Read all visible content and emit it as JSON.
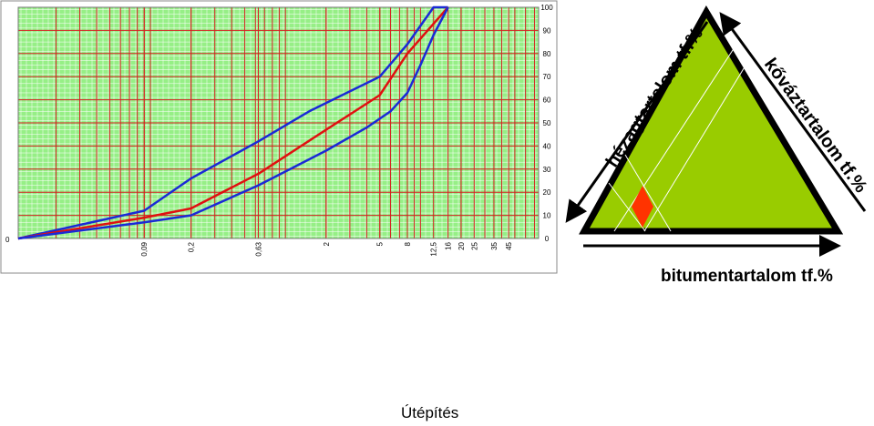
{
  "chart_data": [
    {
      "type": "line",
      "x_scale": "log",
      "x_ticks": [
        "0,09",
        "0,2",
        "0,63",
        "2",
        "5",
        "8",
        "12,5",
        "16",
        "20",
        "25",
        "35",
        "45"
      ],
      "y_ticks": [
        "0",
        "10",
        "20",
        "30",
        "40",
        "50",
        "60",
        "70",
        "80",
        "90",
        "100"
      ],
      "ylim": [
        0,
        100
      ],
      "grid": true,
      "x_origin_label": "0",
      "series": [
        {
          "role": "upper-limit",
          "color": "#1a2ad6",
          "points": [
            [
              0.09,
              12
            ],
            [
              0.2,
              26
            ],
            [
              0.63,
              42
            ],
            [
              1.5,
              55
            ],
            [
              5,
              70
            ],
            [
              8,
              84
            ],
            [
              12.5,
              100
            ],
            [
              16,
              100
            ]
          ]
        },
        {
          "role": "grading",
          "color": "#e01010",
          "points": [
            [
              0.09,
              9
            ],
            [
              0.2,
              13
            ],
            [
              0.63,
              28
            ],
            [
              2,
              47
            ],
            [
              5,
              62
            ],
            [
              8,
              80
            ],
            [
              16,
              100
            ]
          ]
        },
        {
          "role": "lower-limit",
          "color": "#1a2ad6",
          "points": [
            [
              0.09,
              7
            ],
            [
              0.2,
              10
            ],
            [
              0.63,
              23
            ],
            [
              2,
              38
            ],
            [
              4,
              48
            ],
            [
              6,
              55
            ],
            [
              8,
              63
            ],
            [
              10,
              75
            ],
            [
              12.5,
              88
            ],
            [
              16,
              100
            ]
          ]
        }
      ],
      "colors": {
        "background": "#96ef86",
        "major_grid": "#d62020",
        "minor_grid": "#ffffff",
        "frame": "#888888"
      }
    },
    {
      "type": "ternary",
      "axis_labels": {
        "left": "hézagtartalom tf.%",
        "right": "kőváztartalom tf.%",
        "bottom": "bitumentartalom tf.%"
      },
      "colors": {
        "fill": "#99cc00",
        "border": "#000000",
        "marker": "#ff3300",
        "grid": "#ffffff"
      }
    }
  ],
  "footer": {
    "caption": "Útépítés"
  }
}
